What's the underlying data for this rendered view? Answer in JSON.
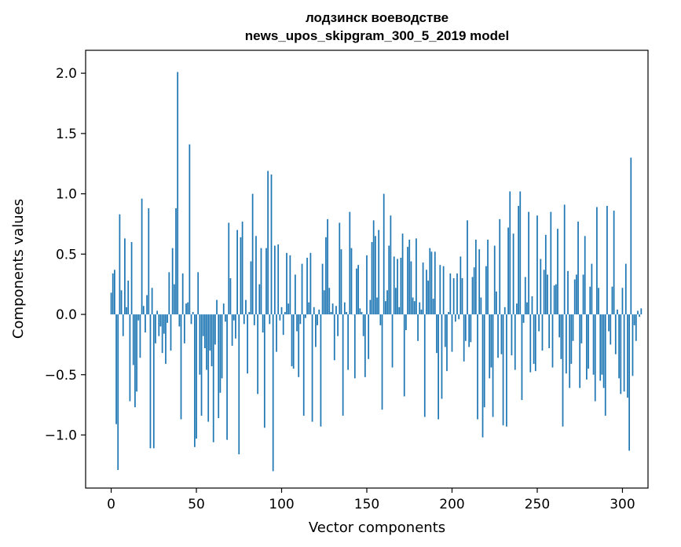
{
  "chart_data": {
    "type": "bar",
    "title": "лодзинск воеводстве",
    "subtitle": "news_upos_skipgram_300_5_2019 model",
    "xlabel": "Vector components",
    "ylabel": "Components values",
    "xlim": [
      -15,
      315
    ],
    "ylim": [
      -1.44,
      2.19
    ],
    "xticks": [
      0,
      50,
      100,
      150,
      200,
      250,
      300
    ],
    "xtick_labels": [
      "0",
      "50",
      "100",
      "150",
      "200",
      "250",
      "300"
    ],
    "yticks": [
      -1.0,
      -0.5,
      0.0,
      0.5,
      1.0,
      1.5,
      2.0
    ],
    "ytick_labels": [
      "−1.0",
      "−0.5",
      "0.0",
      "0.5",
      "1.0",
      "1.5",
      "2.0"
    ],
    "bar_color": "#1f77b4",
    "grid": false,
    "values": [
      0.18,
      0.34,
      0.37,
      -0.91,
      -1.29,
      0.83,
      0.2,
      -0.18,
      0.63,
      0.06,
      0.28,
      -0.72,
      0.6,
      -0.42,
      -0.77,
      -0.64,
      -0.05,
      -0.36,
      0.96,
      0.07,
      -0.15,
      0.16,
      0.88,
      -1.11,
      0.22,
      -1.11,
      -0.24,
      0.03,
      -0.18,
      -0.1,
      -0.32,
      -0.16,
      -0.41,
      -0.07,
      0.35,
      -0.3,
      0.55,
      0.25,
      0.88,
      2.01,
      -0.1,
      -0.87,
      0.34,
      -0.24,
      0.09,
      0.1,
      1.41,
      -0.08,
      0.02,
      -1.1,
      -1.03,
      0.35,
      -0.5,
      -0.84,
      -0.18,
      -0.28,
      -0.46,
      -0.89,
      -0.3,
      -0.43,
      -1.06,
      -0.25,
      0.12,
      -0.86,
      -0.65,
      -0.53,
      0.09,
      -0.06,
      -1.04,
      0.76,
      0.3,
      -0.26,
      -0.05,
      -0.2,
      0.7,
      -1.16,
      0.64,
      0.77,
      -0.08,
      0.12,
      -0.49,
      0.02,
      0.44,
      1.0,
      -0.09,
      0.65,
      -0.66,
      0.25,
      0.55,
      -0.15,
      -0.94,
      0.55,
      1.19,
      -0.08,
      1.16,
      -1.3,
      0.57,
      -0.31,
      0.58,
      -0.05,
      0.06,
      -0.17,
      0.02,
      0.51,
      0.09,
      0.49,
      -0.43,
      -0.45,
      0.33,
      -0.14,
      -0.52,
      -0.08,
      0.42,
      -0.84,
      -0.03,
      0.47,
      0.1,
      0.51,
      -0.89,
      0.06,
      -0.27,
      -0.09,
      0.04,
      -0.93,
      0.42,
      0.2,
      0.64,
      0.79,
      0.22,
      0.02,
      0.09,
      -0.38,
      0.07,
      -0.18,
      0.76,
      0.54,
      -0.84,
      0.1,
      0.02,
      -0.46,
      0.85,
      0.55,
      0.0,
      -0.53,
      0.38,
      0.41,
      0.05,
      0.02,
      -0.18,
      -0.52,
      0.49,
      -0.37,
      0.12,
      0.6,
      0.78,
      0.65,
      0.14,
      0.7,
      -0.09,
      -0.79,
      1.0,
      0.11,
      0.2,
      0.57,
      0.82,
      -0.44,
      0.48,
      0.22,
      0.46,
      0.06,
      0.47,
      0.67,
      -0.68,
      -0.13,
      0.56,
      0.62,
      0.44,
      0.14,
      0.11,
      0.63,
      -0.22,
      0.1,
      0.04,
      0.43,
      -0.85,
      0.37,
      0.28,
      0.55,
      0.52,
      0.13,
      0.52,
      -0.32,
      -0.87,
      0.41,
      -0.7,
      0.4,
      -0.27,
      -0.47,
      0.02,
      0.34,
      -0.31,
      0.3,
      -0.06,
      0.34,
      -0.04,
      0.48,
      0.3,
      -0.39,
      -0.22,
      0.78,
      -0.27,
      -0.23,
      0.31,
      0.39,
      0.62,
      -0.87,
      0.54,
      0.14,
      -1.02,
      -0.77,
      0.4,
      0.62,
      -0.53,
      -0.44,
      -0.85,
      0.57,
      0.19,
      -0.36,
      0.79,
      -0.33,
      -0.92,
      0.06,
      -0.93,
      0.72,
      1.02,
      -0.34,
      0.67,
      -0.46,
      0.09,
      0.9,
      1.02,
      -0.71,
      -0.07,
      0.31,
      0.1,
      0.85,
      -0.48,
      0.15,
      -0.41,
      -0.47,
      0.82,
      -0.14,
      0.46,
      -0.3,
      0.37,
      0.66,
      0.33,
      -0.28,
      0.85,
      -0.44,
      0.24,
      0.25,
      0.71,
      -0.19,
      -0.37,
      -0.93,
      0.91,
      -0.49,
      0.36,
      -0.61,
      -0.41,
      -0.22,
      0.29,
      0.33,
      0.77,
      -0.61,
      -0.24,
      0.33,
      0.65,
      -0.54,
      -0.45,
      0.23,
      0.42,
      -0.5,
      -0.72,
      0.89,
      0.22,
      -0.55,
      -0.5,
      -0.61,
      -0.84,
      0.9,
      -0.14,
      -0.25,
      0.23,
      0.86,
      -0.33,
      0.04,
      -0.53,
      -0.66,
      0.22,
      -0.64,
      0.42,
      -0.69,
      -1.13,
      1.3,
      -0.51,
      -0.09,
      -0.22,
      0.03,
      -0.02,
      0.05
    ]
  }
}
